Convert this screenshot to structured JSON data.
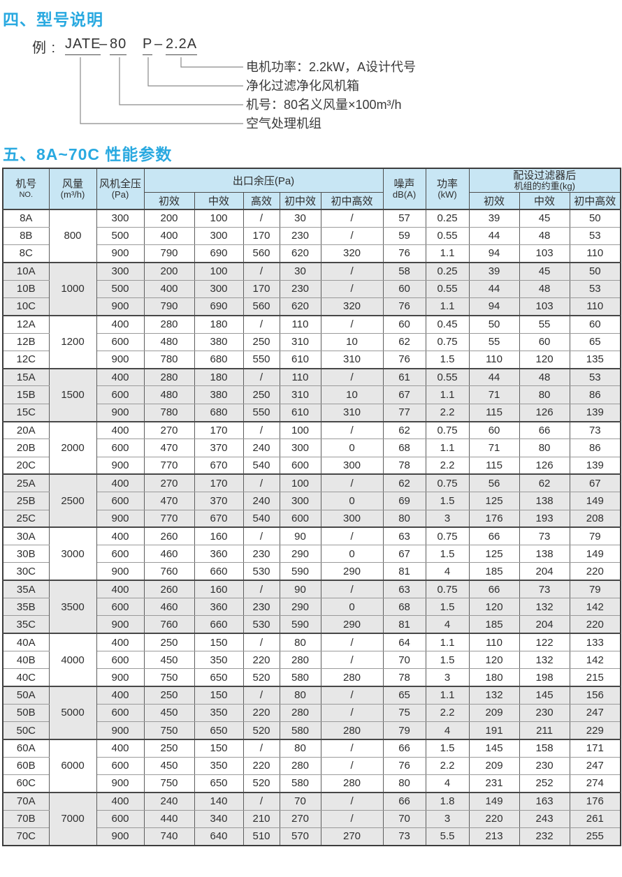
{
  "page": {
    "section4_title": "四、型号说明",
    "section5_title": "五、8A~70C 性能参数"
  },
  "model_example": {
    "prefix": "例 :",
    "series": "JATE",
    "dash1": "–",
    "size": "80",
    "type": "P",
    "dash2": "–",
    "power": "2.2A",
    "callouts": [
      "电机功率：2.2kW，A设计代号",
      "净化过滤净化风机箱",
      "机号：80名义风量×100m³/h",
      "空气处理机组"
    ]
  },
  "table": {
    "header": {
      "model_no": {
        "line1": "机号",
        "line2": "NO."
      },
      "airflow": {
        "line1": "风量",
        "line2": "(m³/h)"
      },
      "fan_pressure": {
        "line1": "风机全压",
        "line2": "(Pa)"
      },
      "outlet_group": "出口余压(Pa)",
      "outlet_subs": [
        "初效",
        "中效",
        "高效",
        "初中效",
        "初中高效"
      ],
      "noise": {
        "line1": "噪声",
        "line2": "dB(A)"
      },
      "power": {
        "line1": "功率",
        "line2": "(kW)"
      },
      "weight_group": {
        "line1": "配设过滤器后",
        "line2": "机组的约重(kg)"
      },
      "weight_subs": [
        "初效",
        "中效",
        "初中高效"
      ]
    },
    "groups": [
      {
        "airflow": "800",
        "rows": [
          {
            "no": "8A",
            "fan_pressure": "300",
            "outlet": [
              "200",
              "100",
              "/",
              "30",
              "/"
            ],
            "noise": "57",
            "power": "0.25",
            "weights": [
              "39",
              "45",
              "50"
            ]
          },
          {
            "no": "8B",
            "fan_pressure": "500",
            "outlet": [
              "400",
              "300",
              "170",
              "230",
              "/"
            ],
            "noise": "59",
            "power": "0.55",
            "weights": [
              "44",
              "48",
              "53"
            ]
          },
          {
            "no": "8C",
            "fan_pressure": "900",
            "outlet": [
              "790",
              "690",
              "560",
              "620",
              "320"
            ],
            "noise": "76",
            "power": "1.1",
            "weights": [
              "94",
              "103",
              "110"
            ]
          }
        ]
      },
      {
        "airflow": "1000",
        "rows": [
          {
            "no": "10A",
            "fan_pressure": "300",
            "outlet": [
              "200",
              "100",
              "/",
              "30",
              "/"
            ],
            "noise": "58",
            "power": "0.25",
            "weights": [
              "39",
              "45",
              "50"
            ]
          },
          {
            "no": "10B",
            "fan_pressure": "500",
            "outlet": [
              "400",
              "300",
              "170",
              "230",
              "/"
            ],
            "noise": "60",
            "power": "0.55",
            "weights": [
              "44",
              "48",
              "53"
            ]
          },
          {
            "no": "10C",
            "fan_pressure": "900",
            "outlet": [
              "790",
              "690",
              "560",
              "620",
              "320"
            ],
            "noise": "76",
            "power": "1.1",
            "weights": [
              "94",
              "103",
              "110"
            ]
          }
        ]
      },
      {
        "airflow": "1200",
        "rows": [
          {
            "no": "12A",
            "fan_pressure": "400",
            "outlet": [
              "280",
              "180",
              "/",
              "110",
              "/"
            ],
            "noise": "60",
            "power": "0.45",
            "weights": [
              "50",
              "55",
              "60"
            ]
          },
          {
            "no": "12B",
            "fan_pressure": "600",
            "outlet": [
              "480",
              "380",
              "250",
              "310",
              "10"
            ],
            "noise": "62",
            "power": "0.75",
            "weights": [
              "55",
              "60",
              "65"
            ]
          },
          {
            "no": "12C",
            "fan_pressure": "900",
            "outlet": [
              "780",
              "680",
              "550",
              "610",
              "310"
            ],
            "noise": "76",
            "power": "1.5",
            "weights": [
              "110",
              "120",
              "135"
            ]
          }
        ]
      },
      {
        "airflow": "1500",
        "rows": [
          {
            "no": "15A",
            "fan_pressure": "400",
            "outlet": [
              "280",
              "180",
              "/",
              "110",
              "/"
            ],
            "noise": "61",
            "power": "0.55",
            "weights": [
              "44",
              "48",
              "53"
            ]
          },
          {
            "no": "15B",
            "fan_pressure": "600",
            "outlet": [
              "480",
              "380",
              "250",
              "310",
              "10"
            ],
            "noise": "67",
            "power": "1.1",
            "weights": [
              "71",
              "80",
              "86"
            ]
          },
          {
            "no": "15C",
            "fan_pressure": "900",
            "outlet": [
              "780",
              "680",
              "550",
              "610",
              "310"
            ],
            "noise": "77",
            "power": "2.2",
            "weights": [
              "115",
              "126",
              "139"
            ]
          }
        ]
      },
      {
        "airflow": "2000",
        "rows": [
          {
            "no": "20A",
            "fan_pressure": "400",
            "outlet": [
              "270",
              "170",
              "/",
              "100",
              "/"
            ],
            "noise": "62",
            "power": "0.75",
            "weights": [
              "60",
              "66",
              "73"
            ]
          },
          {
            "no": "20B",
            "fan_pressure": "600",
            "outlet": [
              "470",
              "370",
              "240",
              "300",
              "0"
            ],
            "noise": "68",
            "power": "1.1",
            "weights": [
              "71",
              "80",
              "86"
            ]
          },
          {
            "no": "20C",
            "fan_pressure": "900",
            "outlet": [
              "770",
              "670",
              "540",
              "600",
              "300"
            ],
            "noise": "78",
            "power": "2.2",
            "weights": [
              "115",
              "126",
              "139"
            ]
          }
        ]
      },
      {
        "airflow": "2500",
        "rows": [
          {
            "no": "25A",
            "fan_pressure": "400",
            "outlet": [
              "270",
              "170",
              "/",
              "100",
              "/"
            ],
            "noise": "62",
            "power": "0.75",
            "weights": [
              "56",
              "62",
              "67"
            ]
          },
          {
            "no": "25B",
            "fan_pressure": "600",
            "outlet": [
              "470",
              "370",
              "240",
              "300",
              "0"
            ],
            "noise": "69",
            "power": "1.5",
            "weights": [
              "125",
              "138",
              "149"
            ]
          },
          {
            "no": "25C",
            "fan_pressure": "900",
            "outlet": [
              "770",
              "670",
              "540",
              "600",
              "300"
            ],
            "noise": "80",
            "power": "3",
            "weights": [
              "176",
              "193",
              "208"
            ]
          }
        ]
      },
      {
        "airflow": "3000",
        "rows": [
          {
            "no": "30A",
            "fan_pressure": "400",
            "outlet": [
              "260",
              "160",
              "/",
              "90",
              "/"
            ],
            "noise": "63",
            "power": "0.75",
            "weights": [
              "66",
              "73",
              "79"
            ]
          },
          {
            "no": "30B",
            "fan_pressure": "600",
            "outlet": [
              "460",
              "360",
              "230",
              "290",
              "0"
            ],
            "noise": "67",
            "power": "1.5",
            "weights": [
              "125",
              "138",
              "149"
            ]
          },
          {
            "no": "30C",
            "fan_pressure": "900",
            "outlet": [
              "760",
              "660",
              "530",
              "590",
              "290"
            ],
            "noise": "81",
            "power": "4",
            "weights": [
              "185",
              "204",
              "220"
            ]
          }
        ]
      },
      {
        "airflow": "3500",
        "rows": [
          {
            "no": "35A",
            "fan_pressure": "400",
            "outlet": [
              "260",
              "160",
              "/",
              "90",
              "/"
            ],
            "noise": "63",
            "power": "0.75",
            "weights": [
              "66",
              "73",
              "79"
            ]
          },
          {
            "no": "35B",
            "fan_pressure": "600",
            "outlet": [
              "460",
              "360",
              "230",
              "290",
              "0"
            ],
            "noise": "68",
            "power": "1.5",
            "weights": [
              "120",
              "132",
              "142"
            ]
          },
          {
            "no": "35C",
            "fan_pressure": "900",
            "outlet": [
              "760",
              "660",
              "530",
              "590",
              "290"
            ],
            "noise": "81",
            "power": "4",
            "weights": [
              "185",
              "204",
              "220"
            ]
          }
        ]
      },
      {
        "airflow": "4000",
        "rows": [
          {
            "no": "40A",
            "fan_pressure": "400",
            "outlet": [
              "250",
              "150",
              "/",
              "80",
              "/"
            ],
            "noise": "64",
            "power": "1.1",
            "weights": [
              "110",
              "122",
              "133"
            ]
          },
          {
            "no": "40B",
            "fan_pressure": "600",
            "outlet": [
              "450",
              "350",
              "220",
              "280",
              "/"
            ],
            "noise": "70",
            "power": "1.5",
            "weights": [
              "120",
              "132",
              "142"
            ]
          },
          {
            "no": "40C",
            "fan_pressure": "900",
            "outlet": [
              "750",
              "650",
              "520",
              "580",
              "280"
            ],
            "noise": "78",
            "power": "3",
            "weights": [
              "180",
              "198",
              "215"
            ]
          }
        ]
      },
      {
        "airflow": "5000",
        "rows": [
          {
            "no": "50A",
            "fan_pressure": "400",
            "outlet": [
              "250",
              "150",
              "/",
              "80",
              "/"
            ],
            "noise": "65",
            "power": "1.1",
            "weights": [
              "132",
              "145",
              "156"
            ]
          },
          {
            "no": "50B",
            "fan_pressure": "600",
            "outlet": [
              "450",
              "350",
              "220",
              "280",
              "/"
            ],
            "noise": "75",
            "power": "2.2",
            "weights": [
              "209",
              "230",
              "247"
            ]
          },
          {
            "no": "50C",
            "fan_pressure": "900",
            "outlet": [
              "750",
              "650",
              "520",
              "580",
              "280"
            ],
            "noise": "79",
            "power": "4",
            "weights": [
              "191",
              "211",
              "229"
            ]
          }
        ]
      },
      {
        "airflow": "6000",
        "rows": [
          {
            "no": "60A",
            "fan_pressure": "400",
            "outlet": [
              "250",
              "150",
              "/",
              "80",
              "/"
            ],
            "noise": "66",
            "power": "1.5",
            "weights": [
              "145",
              "158",
              "171"
            ]
          },
          {
            "no": "60B",
            "fan_pressure": "600",
            "outlet": [
              "450",
              "350",
              "220",
              "280",
              "/"
            ],
            "noise": "76",
            "power": "2.2",
            "weights": [
              "209",
              "230",
              "247"
            ]
          },
          {
            "no": "60C",
            "fan_pressure": "900",
            "outlet": [
              "750",
              "650",
              "520",
              "580",
              "280"
            ],
            "noise": "80",
            "power": "4",
            "weights": [
              "231",
              "252",
              "274"
            ]
          }
        ]
      },
      {
        "airflow": "7000",
        "rows": [
          {
            "no": "70A",
            "fan_pressure": "400",
            "outlet": [
              "240",
              "140",
              "/",
              "70",
              "/"
            ],
            "noise": "66",
            "power": "1.8",
            "weights": [
              "149",
              "163",
              "176"
            ]
          },
          {
            "no": "70B",
            "fan_pressure": "600",
            "outlet": [
              "440",
              "340",
              "210",
              "270",
              "/"
            ],
            "noise": "70",
            "power": "3",
            "weights": [
              "220",
              "243",
              "261"
            ]
          },
          {
            "no": "70C",
            "fan_pressure": "900",
            "outlet": [
              "740",
              "640",
              "510",
              "570",
              "270"
            ],
            "noise": "73",
            "power": "5.5",
            "weights": [
              "213",
              "232",
              "255"
            ]
          }
        ]
      }
    ]
  },
  "colors": {
    "accent_blue": "#29a9e0",
    "header_bg": "#c8e6f4",
    "row_shade": "#e7e7e7",
    "table_border": "#3d3d3d"
  }
}
